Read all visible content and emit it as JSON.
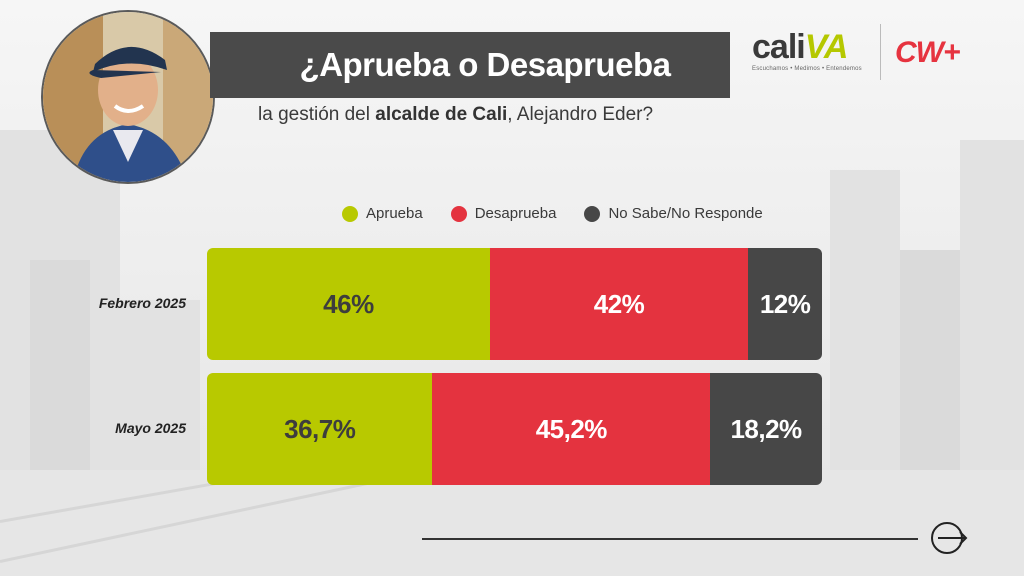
{
  "header": {
    "title": "¿Aprueba o Desaprueba",
    "subtitle_pre": "la gestión del ",
    "subtitle_bold": "alcalde de Cali",
    "subtitle_post": ", Alejandro Eder?"
  },
  "logos": {
    "cali_word_a": "cali",
    "cali_word_b": "VA",
    "cali_tagline": "Escuchamos • Medimos • Entendemos",
    "cw_word": "CW+"
  },
  "colors": {
    "aprueba": "#b8c900",
    "desaprueba": "#e4333f",
    "nsnr": "#474747",
    "title_bg": "#4a4a4a",
    "cw_brand": "#e6333f"
  },
  "icons": {
    "next": "arrow-right-circle-icon"
  },
  "chart_data": {
    "type": "bar",
    "stacked": true,
    "orientation": "horizontal",
    "title": "¿Aprueba o Desaprueba",
    "subtitle": "la gestión del alcalde de Cali, Alejandro Eder?",
    "categories": [
      "Febrero 2025",
      "Mayo 2025"
    ],
    "series": [
      {
        "name": "Aprueba",
        "values": [
          46,
          36.7
        ],
        "labels": [
          "46%",
          "36,7%"
        ],
        "color": "#b8c900",
        "text_color": "#3d3d3d"
      },
      {
        "name": "Desaprueba",
        "values": [
          42,
          45.2
        ],
        "labels": [
          "42%",
          "45,2%"
        ],
        "color": "#e4333f",
        "text_color": "#ffffff"
      },
      {
        "name": "No Sabe/No Responde",
        "values": [
          12,
          18.2
        ],
        "labels": [
          "12%",
          "18,2%"
        ],
        "color": "#474747",
        "text_color": "#ffffff"
      }
    ],
    "legend_position": "top",
    "grid": false,
    "xlim": [
      0,
      100
    ]
  }
}
